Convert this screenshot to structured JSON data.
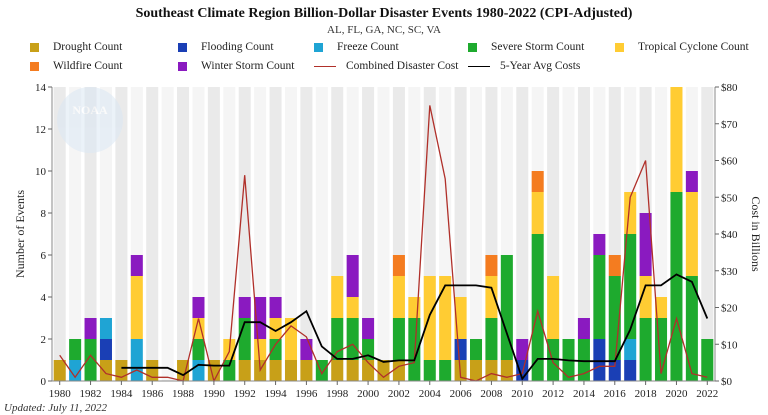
{
  "title": "Southeast Climate Region Billion-Dollar Disaster Events 1980-2022 (CPI-Adjusted)",
  "subtitle": "AL, FL, GA, NC, SC, VA",
  "updated": "Updated: July 11, 2022",
  "watermark": "NOAA",
  "legend": [
    {
      "label": "Drought Count",
      "color": "#c8a018",
      "kind": "box"
    },
    {
      "label": "Flooding Count",
      "color": "#1a3fb5",
      "kind": "box"
    },
    {
      "label": "Freeze Count",
      "color": "#1fa4d4",
      "kind": "box"
    },
    {
      "label": "Severe Storm Count",
      "color": "#1eaa2e",
      "kind": "box"
    },
    {
      "label": "Tropical Cyclone Count",
      "color": "#ffcc33",
      "kind": "box"
    },
    {
      "label": "Wildfire Count",
      "color": "#f47c20",
      "kind": "box"
    },
    {
      "label": "Winter Storm Count",
      "color": "#8a1ac0",
      "kind": "box"
    },
    {
      "label": "Combined Disaster Cost",
      "color": "#b0302a",
      "kind": "line"
    },
    {
      "label": "5-Year Avg Costs",
      "color": "#000000",
      "kind": "line"
    }
  ],
  "chart_data": {
    "type": "bar",
    "stacked": true,
    "ylabel": "Number of Events",
    "y2label": "Cost in Billions",
    "ylim": [
      0,
      14
    ],
    "y2lim": [
      0,
      80
    ],
    "yticks": [
      0,
      2,
      4,
      6,
      8,
      10,
      12,
      14
    ],
    "y2ticks": [
      "$0",
      "$10",
      "$20",
      "$30",
      "$40",
      "$50",
      "$60",
      "$70",
      "$80"
    ],
    "y2tick_values": [
      0,
      10,
      20,
      30,
      40,
      50,
      60,
      70,
      80
    ],
    "categories": [
      1980,
      1981,
      1982,
      1983,
      1984,
      1985,
      1986,
      1987,
      1988,
      1989,
      1990,
      1991,
      1992,
      1993,
      1994,
      1995,
      1996,
      1997,
      1998,
      1999,
      2000,
      2001,
      2002,
      2003,
      2004,
      2005,
      2006,
      2007,
      2008,
      2009,
      2010,
      2011,
      2012,
      2013,
      2014,
      2015,
      2016,
      2017,
      2018,
      2019,
      2020,
      2021,
      2022
    ],
    "xtick_labels": [
      "1980",
      "1982",
      "1984",
      "1986",
      "1988",
      "1990",
      "1992",
      "1994",
      "1996",
      "1998",
      "2000",
      "2002",
      "2004",
      "2006",
      "2008",
      "2010",
      "2012",
      "2014",
      "2016",
      "2018",
      "2020",
      "2022"
    ],
    "series": [
      {
        "name": "Drought Count",
        "color": "#c8a018",
        "values": [
          1,
          0,
          0,
          1,
          1,
          0,
          1,
          0,
          1,
          0,
          1,
          0,
          1,
          1,
          1,
          1,
          1,
          0,
          1,
          1,
          1,
          1,
          1,
          0,
          0,
          0,
          1,
          1,
          1,
          1,
          0,
          0,
          0,
          0,
          0,
          0,
          0,
          0,
          0,
          0,
          0,
          0,
          0
        ]
      },
      {
        "name": "Flooding Count",
        "color": "#1a3fb5",
        "values": [
          0,
          0,
          0,
          1,
          0,
          0,
          0,
          0,
          0,
          0,
          0,
          0,
          0,
          0,
          0,
          0,
          0,
          0,
          0,
          0,
          0,
          0,
          0,
          0,
          0,
          0,
          1,
          0,
          0,
          0,
          1,
          0,
          0,
          0,
          0,
          2,
          1,
          1,
          0,
          0,
          0,
          0,
          0
        ]
      },
      {
        "name": "Freeze Count",
        "color": "#1fa4d4",
        "values": [
          0,
          1,
          0,
          1,
          0,
          2,
          0,
          0,
          0,
          1,
          0,
          0,
          0,
          0,
          0,
          0,
          0,
          0,
          0,
          0,
          0,
          0,
          0,
          0,
          0,
          0,
          0,
          0,
          0,
          0,
          0,
          0,
          0,
          0,
          0,
          0,
          0,
          1,
          0,
          0,
          0,
          0,
          0
        ]
      },
      {
        "name": "Severe Storm Count",
        "color": "#1eaa2e",
        "values": [
          0,
          1,
          2,
          0,
          0,
          0,
          0,
          0,
          0,
          1,
          0,
          1,
          2,
          0,
          1,
          0,
          0,
          1,
          2,
          2,
          1,
          0,
          2,
          3,
          1,
          1,
          0,
          1,
          2,
          5,
          0,
          7,
          2,
          2,
          2,
          4,
          4,
          5,
          3,
          3,
          9,
          5,
          2
        ]
      },
      {
        "name": "Tropical Cyclone Count",
        "color": "#ffcc33",
        "values": [
          0,
          0,
          0,
          0,
          0,
          3,
          0,
          0,
          0,
          1,
          0,
          1,
          0,
          1,
          1,
          2,
          0,
          0,
          2,
          1,
          0,
          0,
          2,
          1,
          4,
          4,
          2,
          0,
          2,
          0,
          0,
          2,
          3,
          0,
          0,
          0,
          0,
          2,
          2,
          1,
          5,
          4,
          0
        ]
      },
      {
        "name": "Wildfire Count",
        "color": "#f47c20",
        "values": [
          0,
          0,
          0,
          0,
          0,
          0,
          0,
          0,
          0,
          0,
          0,
          0,
          0,
          0,
          0,
          0,
          0,
          0,
          0,
          0,
          0,
          0,
          1,
          0,
          0,
          0,
          0,
          0,
          1,
          0,
          0,
          1,
          0,
          0,
          0,
          0,
          1,
          0,
          0,
          0,
          0,
          0,
          0
        ]
      },
      {
        "name": "Winter Storm Count",
        "color": "#8a1ac0",
        "values": [
          0,
          0,
          1,
          0,
          0,
          1,
          0,
          0,
          0,
          1,
          0,
          0,
          1,
          2,
          1,
          0,
          1,
          0,
          0,
          2,
          1,
          0,
          0,
          0,
          0,
          0,
          0,
          0,
          0,
          0,
          1,
          0,
          0,
          0,
          1,
          1,
          0,
          0,
          3,
          0,
          0,
          1,
          0
        ]
      }
    ],
    "lines": [
      {
        "name": "Combined Disaster Cost",
        "color": "#b0302a",
        "values": [
          7,
          1,
          7,
          2,
          1,
          3,
          1,
          1,
          0,
          17,
          0,
          8,
          56,
          3,
          10,
          15,
          12,
          2,
          8,
          10,
          5,
          1,
          4,
          5,
          75,
          55,
          1,
          0,
          2,
          1,
          2,
          19,
          5,
          1,
          2,
          4,
          4,
          50,
          60,
          2,
          17,
          2,
          1
        ]
      },
      {
        "name": "5-Year Avg Costs",
        "color": "#000000",
        "values": [
          null,
          null,
          null,
          null,
          3.6,
          3.6,
          3.6,
          3.6,
          1.6,
          4.4,
          4.2,
          4.2,
          16,
          16,
          13.6,
          16,
          19,
          9.4,
          6,
          6,
          7,
          5.2,
          5.6,
          5.6,
          18,
          26,
          26,
          26,
          25.4,
          13,
          0.6,
          6,
          6,
          5.6,
          5.4,
          5.4,
          5.4,
          14,
          26,
          26,
          29,
          27,
          17
        ]
      }
    ],
    "grid": false,
    "legend_position": "top"
  }
}
